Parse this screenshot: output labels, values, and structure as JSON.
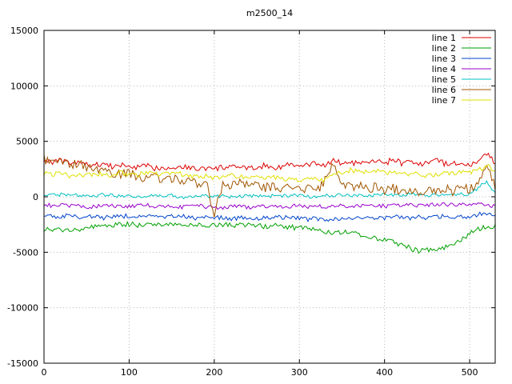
{
  "colors": {
    "background": "#ffffff",
    "border": "#000000",
    "grid": "#b8b8b8",
    "text": "#000000"
  },
  "chart_data": {
    "type": "line",
    "title": "m2500_14",
    "xlabel": "",
    "ylabel": "",
    "xlim": [
      0,
      530
    ],
    "ylim": [
      -15000,
      15000
    ],
    "x_ticks": [
      0,
      100,
      200,
      300,
      400,
      500
    ],
    "y_ticks": [
      -15000,
      -10000,
      -5000,
      0,
      5000,
      10000,
      15000
    ],
    "grid": true,
    "legend_position": "top-right",
    "x_step": 10,
    "series": [
      {
        "name": "line 1",
        "color": "#dd0000",
        "noise": 250,
        "values": [
          3300,
          3150,
          3250,
          3000,
          3100,
          2900,
          2850,
          3000,
          2700,
          2850,
          2750,
          2650,
          2800,
          2550,
          2700,
          2600,
          2750,
          2650,
          2500,
          2600,
          2450,
          2700,
          2600,
          2750,
          2500,
          2650,
          2850,
          2600,
          2750,
          2950,
          2700,
          2850,
          3050,
          2800,
          3350,
          2950,
          3150,
          2900,
          3050,
          3250,
          2900,
          3450,
          3000,
          3150,
          2850,
          3050,
          3500,
          3000,
          2950,
          3150,
          2850,
          3050,
          3900,
          3100
        ]
      },
      {
        "name": "line 2",
        "color": "#00a000",
        "noise": 230,
        "values": [
          -2900,
          -3050,
          -3000,
          -2900,
          -2950,
          -2800,
          -2700,
          -2650,
          -2600,
          -2500,
          -2450,
          -2550,
          -2500,
          -2400,
          -2500,
          -2450,
          -2550,
          -2500,
          -2600,
          -2500,
          -2550,
          -2500,
          -2600,
          -2550,
          -2500,
          -2600,
          -2650,
          -2600,
          -2700,
          -2750,
          -2800,
          -2900,
          -2950,
          -3100,
          -3200,
          -3150,
          -3300,
          -3400,
          -3550,
          -3700,
          -3900,
          -4100,
          -4300,
          -4600,
          -4950,
          -4800,
          -4700,
          -4550,
          -4350,
          -3950,
          -3300,
          -2950,
          -2700,
          -2650
        ]
      },
      {
        "name": "line 3",
        "color": "#0044cc",
        "noise": 200,
        "values": [
          -1650,
          -1750,
          -1800,
          -1700,
          -1850,
          -1750,
          -1800,
          -1900,
          -1750,
          -1800,
          -1700,
          -1850,
          -1750,
          -1800,
          -1900,
          -1800,
          -1750,
          -1850,
          -1950,
          -1850,
          -1800,
          -1900,
          -2000,
          -1900,
          -1850,
          -1950,
          -1850,
          -1800,
          -1900,
          -1850,
          -1950,
          -2050,
          -1950,
          -2150,
          -2050,
          -1950,
          -2000,
          -1900,
          -1950,
          -1850,
          -1900,
          -1800,
          -1850,
          -1950,
          -1850,
          -1900,
          -1800,
          -1750,
          -1850,
          -1750,
          -1800,
          -1600,
          -1500,
          -1700
        ]
      },
      {
        "name": "line 4",
        "color": "#9900cc",
        "noise": 180,
        "values": [
          -700,
          -800,
          -750,
          -850,
          -800,
          -900,
          -850,
          -750,
          -800,
          -900,
          -850,
          -800,
          -750,
          -850,
          -800,
          -900,
          -950,
          -850,
          -800,
          -900,
          -1050,
          -950,
          -900,
          -850,
          -950,
          -900,
          -850,
          -800,
          -900,
          -850,
          -800,
          -900,
          -850,
          -950,
          -800,
          -750,
          -850,
          -800,
          -700,
          -750,
          -850,
          -800,
          -750,
          -700,
          -800,
          -750,
          -700,
          -650,
          -750,
          -700,
          -650,
          -550,
          -700,
          -900
        ]
      },
      {
        "name": "line 5",
        "color": "#00c0c0",
        "noise": 160,
        "values": [
          250,
          150,
          200,
          100,
          150,
          50,
          100,
          200,
          150,
          50,
          100,
          0,
          100,
          150,
          50,
          100,
          0,
          -50,
          50,
          100,
          0,
          50,
          -50,
          0,
          100,
          50,
          0,
          100,
          50,
          150,
          100,
          0,
          50,
          150,
          100,
          200,
          150,
          100,
          50,
          150,
          200,
          100,
          150,
          250,
          200,
          150,
          100,
          200,
          150,
          250,
          250,
          800,
          1400,
          300
        ]
      },
      {
        "name": "line 6",
        "color": "#a05500",
        "noise": 430,
        "values": [
          3400,
          3100,
          3300,
          2800,
          3000,
          2600,
          2400,
          2600,
          2200,
          2000,
          2200,
          1800,
          1600,
          1900,
          1500,
          1700,
          1300,
          1500,
          1200,
          1400,
          -1500,
          1200,
          1000,
          1300,
          900,
          1100,
          800,
          1000,
          700,
          900,
          600,
          800,
          500,
          1500,
          3200,
          1200,
          800,
          1000,
          600,
          900,
          500,
          800,
          400,
          700,
          300,
          600,
          400,
          800,
          500,
          900,
          600,
          1100,
          2800,
          1000
        ]
      },
      {
        "name": "line 7",
        "color": "#e0e000",
        "noise": 220,
        "values": [
          2100,
          2000,
          2200,
          1900,
          2050,
          1950,
          2100,
          2000,
          1900,
          2150,
          2050,
          1950,
          2200,
          2100,
          2000,
          2150,
          2050,
          1900,
          1800,
          1900,
          1700,
          1800,
          1900,
          1750,
          1850,
          1700,
          1600,
          1750,
          1650,
          1550,
          1450,
          1550,
          1650,
          1500,
          2000,
          2200,
          2400,
          2300,
          2200,
          2400,
          2300,
          2100,
          2200,
          2000,
          2100,
          1900,
          2000,
          2200,
          2100,
          2300,
          2200,
          2400,
          2800,
          2300
        ]
      }
    ]
  }
}
